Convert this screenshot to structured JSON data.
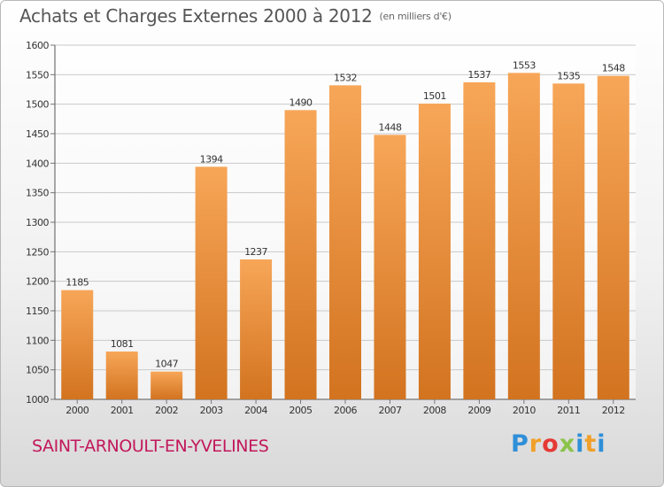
{
  "title": "Achats et Charges Externes 2000 à 2012",
  "subtitle": "(en milliers d'€)",
  "location": "SAINT-ARNOULT-EN-YVELINES",
  "brand": {
    "p": "P",
    "r": "r",
    "o": "o",
    "x": "x",
    "i": "i",
    "t": "t",
    "i2": "i"
  },
  "colors": {
    "bar_top": "#f7a658",
    "bar_bottom": "#d2731f",
    "grid": "#c9c9c9",
    "location": "#c2185b"
  },
  "chart_data": {
    "type": "bar",
    "title": "Achats et Charges Externes 2000 à 2012",
    "subtitle": "(en milliers d'€)",
    "xlabel": "",
    "ylabel": "",
    "categories": [
      "2000",
      "2001",
      "2002",
      "2003",
      "2004",
      "2005",
      "2006",
      "2007",
      "2008",
      "2009",
      "2010",
      "2011",
      "2012"
    ],
    "values": [
      1185,
      1081,
      1047,
      1394,
      1237,
      1490,
      1532,
      1448,
      1501,
      1537,
      1553,
      1535,
      1548
    ],
    "ylim": [
      1000,
      1600
    ],
    "yticks": [
      1000,
      1050,
      1100,
      1150,
      1200,
      1250,
      1300,
      1350,
      1400,
      1450,
      1500,
      1550,
      1600
    ],
    "grid": true,
    "legend": "none"
  }
}
